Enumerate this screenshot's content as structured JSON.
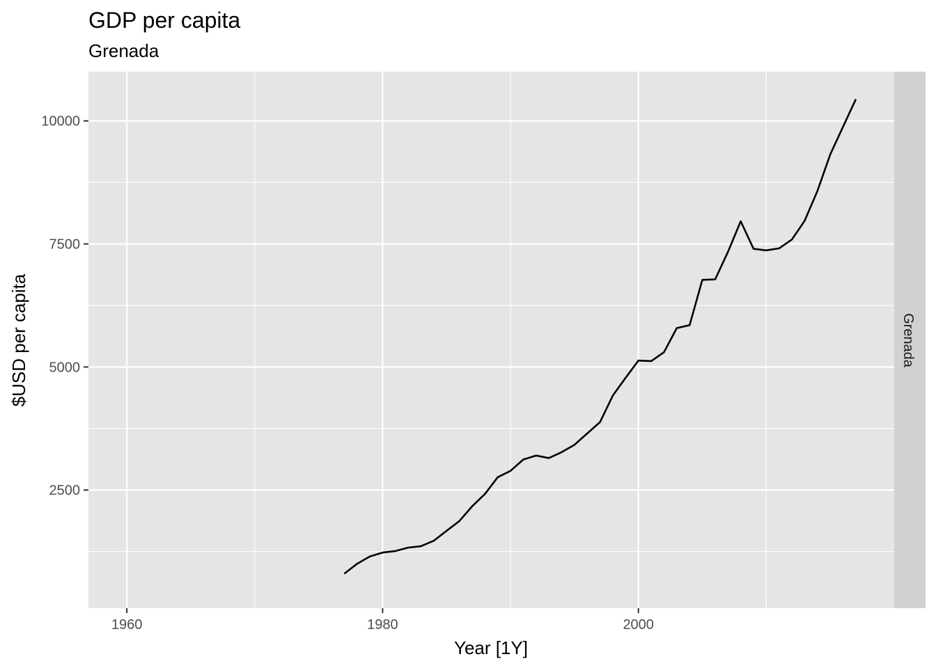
{
  "chart_data": {
    "type": "line",
    "title": "GDP per capita",
    "subtitle": "Grenada",
    "xlabel": "Year [1Y]",
    "ylabel": "$USD per capita",
    "facet_label": "Grenada",
    "xlim": [
      1957,
      2020
    ],
    "ylim": [
      100,
      11000
    ],
    "x_ticks": [
      1960,
      1980,
      2000
    ],
    "x_minor_ticks": [
      1970,
      1990,
      2010
    ],
    "y_ticks": [
      2500,
      5000,
      7500,
      10000
    ],
    "y_minor_ticks": [
      1250,
      3750,
      6250,
      8750
    ],
    "grid": true,
    "panel_color": "#e5e5e5",
    "strip_color": "#d1d1d1",
    "line_color": "#000000",
    "series": [
      {
        "x": [
          1977,
          1978,
          1979,
          1980,
          1981,
          1982,
          1983,
          1984,
          1985,
          1986,
          1987,
          1988,
          1989,
          1990,
          1991,
          1992,
          1993,
          1994,
          1995,
          1996,
          1997,
          1998,
          1999,
          2000,
          2001,
          2002,
          2003,
          2004,
          2005,
          2006,
          2007,
          2008,
          2009,
          2010,
          2011,
          2012,
          2013,
          2014,
          2015,
          2016,
          2017
        ],
        "y": [
          800,
          1000,
          1150,
          1230,
          1260,
          1330,
          1360,
          1470,
          1670,
          1870,
          2170,
          2420,
          2760,
          2890,
          3120,
          3200,
          3150,
          3270,
          3420,
          3650,
          3880,
          4420,
          4780,
          5130,
          5120,
          5300,
          5790,
          5850,
          6770,
          6780,
          7340,
          7960,
          7400,
          7370,
          7410,
          7590,
          7970,
          8580,
          9320,
          9880,
          10440
        ]
      }
    ]
  }
}
